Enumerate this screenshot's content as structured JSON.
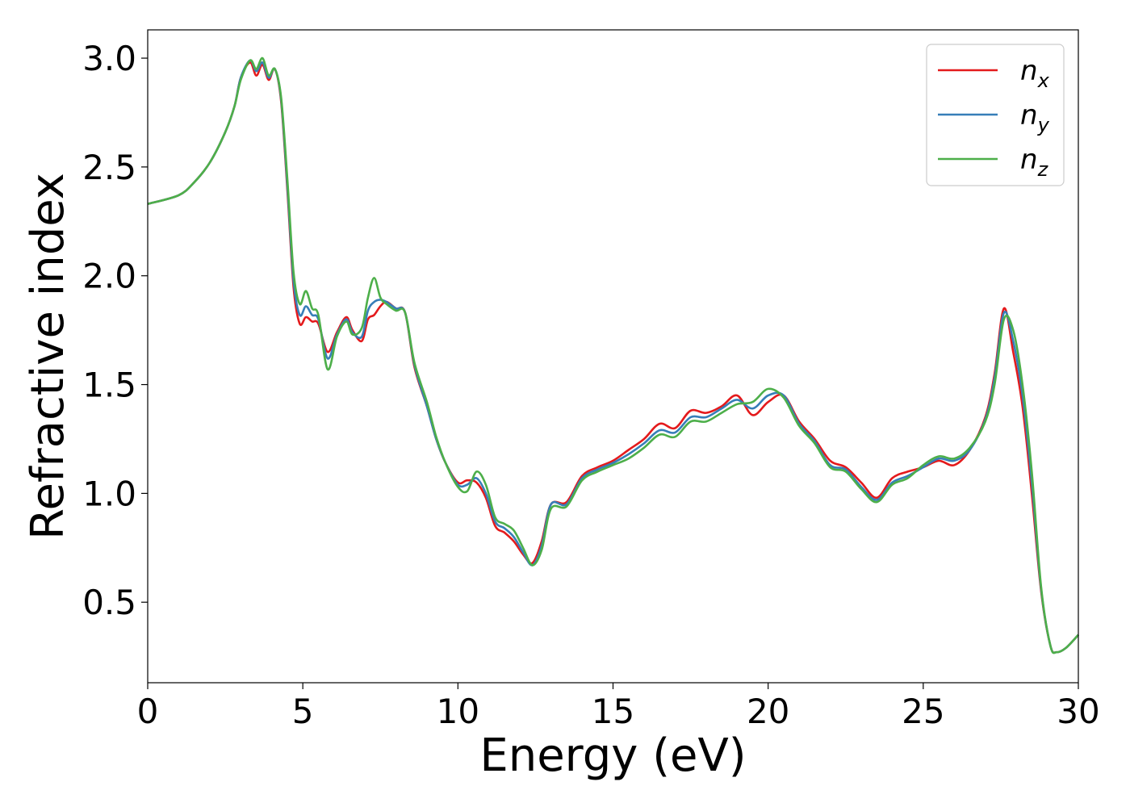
{
  "chart_data": {
    "type": "line",
    "title": "",
    "xlabel": "Energy (eV)",
    "ylabel": "Refractive index",
    "xlim": [
      0,
      30
    ],
    "ylim": [
      0.13,
      3.13
    ],
    "xticks": [
      0,
      5,
      10,
      15,
      20,
      25,
      30
    ],
    "xtick_labels": [
      "0",
      "5",
      "10",
      "15",
      "20",
      "25",
      "30"
    ],
    "yticks": [
      0.5,
      1.0,
      1.5,
      2.0,
      2.5,
      3.0
    ],
    "ytick_labels": [
      "0.5",
      "1.0",
      "1.5",
      "2.0",
      "2.5",
      "3.0"
    ],
    "grid": false,
    "legend_position": "top-right",
    "series": [
      {
        "name": "n_x",
        "label_base": "n",
        "label_sub": "x",
        "color": "#e41a1c",
        "x": [
          0,
          1,
          1.5,
          2,
          2.5,
          2.8,
          3.0,
          3.3,
          3.5,
          3.7,
          3.9,
          4.1,
          4.3,
          4.5,
          4.7,
          4.9,
          5.1,
          5.3,
          5.5,
          5.8,
          6.1,
          6.4,
          6.6,
          6.9,
          7.1,
          7.3,
          7.5,
          7.7,
          8.0,
          8.3,
          8.6,
          9.0,
          9.3,
          9.6,
          10.0,
          10.3,
          10.6,
          10.9,
          11.2,
          11.5,
          11.8,
          12.1,
          12.4,
          12.7,
          13.0,
          13.5,
          14.0,
          14.5,
          15.0,
          15.5,
          16.0,
          16.5,
          17.0,
          17.5,
          18.0,
          18.5,
          19.0,
          19.5,
          20.0,
          20.5,
          21.0,
          21.5,
          22.0,
          22.5,
          23.0,
          23.5,
          24.0,
          24.5,
          25.0,
          25.5,
          26.0,
          26.5,
          27.0,
          27.3,
          27.6,
          27.9,
          28.2,
          28.5,
          28.8,
          29.1,
          29.3,
          29.6,
          30.0
        ],
        "y": [
          2.33,
          2.37,
          2.43,
          2.52,
          2.66,
          2.78,
          2.91,
          2.98,
          2.92,
          2.97,
          2.9,
          2.95,
          2.8,
          2.4,
          1.95,
          1.78,
          1.81,
          1.79,
          1.78,
          1.65,
          1.74,
          1.81,
          1.75,
          1.7,
          1.8,
          1.82,
          1.86,
          1.88,
          1.85,
          1.83,
          1.58,
          1.4,
          1.25,
          1.14,
          1.05,
          1.06,
          1.05,
          0.98,
          0.85,
          0.82,
          0.78,
          0.72,
          0.68,
          0.78,
          0.95,
          0.96,
          1.08,
          1.12,
          1.15,
          1.2,
          1.25,
          1.32,
          1.3,
          1.38,
          1.37,
          1.4,
          1.45,
          1.36,
          1.42,
          1.45,
          1.33,
          1.25,
          1.15,
          1.12,
          1.05,
          0.98,
          1.07,
          1.1,
          1.12,
          1.15,
          1.13,
          1.2,
          1.35,
          1.55,
          1.85,
          1.65,
          1.4,
          1.0,
          0.55,
          0.3,
          0.27,
          0.29,
          0.35
        ]
      },
      {
        "name": "n_y",
        "label_base": "n",
        "label_sub": "y",
        "color": "#377eb8",
        "x": [
          0,
          1,
          1.5,
          2,
          2.5,
          2.8,
          3.0,
          3.3,
          3.5,
          3.7,
          3.9,
          4.1,
          4.3,
          4.5,
          4.7,
          4.9,
          5.1,
          5.3,
          5.5,
          5.8,
          6.1,
          6.4,
          6.6,
          6.9,
          7.1,
          7.3,
          7.5,
          7.7,
          8.0,
          8.3,
          8.6,
          9.0,
          9.3,
          9.6,
          10.0,
          10.3,
          10.6,
          10.9,
          11.2,
          11.5,
          11.8,
          12.1,
          12.4,
          12.7,
          13.0,
          13.5,
          14.0,
          14.5,
          15.0,
          15.5,
          16.0,
          16.5,
          17.0,
          17.5,
          18.0,
          18.5,
          19.0,
          19.5,
          20.0,
          20.5,
          21.0,
          21.5,
          22.0,
          22.5,
          23.0,
          23.5,
          24.0,
          24.5,
          25.0,
          25.5,
          26.0,
          26.5,
          27.0,
          27.3,
          27.6,
          27.9,
          28.2,
          28.5,
          28.8,
          29.1,
          29.3,
          29.6,
          30.0
        ],
        "y": [
          2.33,
          2.37,
          2.43,
          2.52,
          2.66,
          2.78,
          2.91,
          2.99,
          2.94,
          2.98,
          2.91,
          2.95,
          2.81,
          2.42,
          1.98,
          1.82,
          1.86,
          1.82,
          1.8,
          1.62,
          1.73,
          1.8,
          1.74,
          1.72,
          1.84,
          1.88,
          1.89,
          1.88,
          1.85,
          1.83,
          1.59,
          1.4,
          1.25,
          1.14,
          1.04,
          1.04,
          1.07,
          1.0,
          0.87,
          0.84,
          0.8,
          0.73,
          0.67,
          0.76,
          0.95,
          0.95,
          1.07,
          1.11,
          1.14,
          1.18,
          1.23,
          1.29,
          1.28,
          1.35,
          1.35,
          1.39,
          1.43,
          1.39,
          1.45,
          1.45,
          1.32,
          1.24,
          1.13,
          1.11,
          1.03,
          0.97,
          1.05,
          1.08,
          1.12,
          1.16,
          1.15,
          1.2,
          1.34,
          1.53,
          1.83,
          1.7,
          1.45,
          1.05,
          0.56,
          0.3,
          0.27,
          0.29,
          0.35
        ]
      },
      {
        "name": "n_z",
        "label_base": "n",
        "label_sub": "z",
        "color": "#4daf4a",
        "x": [
          0,
          1,
          1.5,
          2,
          2.5,
          2.8,
          3.0,
          3.3,
          3.5,
          3.7,
          3.9,
          4.1,
          4.3,
          4.5,
          4.7,
          4.9,
          5.1,
          5.3,
          5.5,
          5.8,
          6.1,
          6.4,
          6.6,
          6.9,
          7.1,
          7.3,
          7.5,
          7.7,
          8.0,
          8.3,
          8.6,
          9.0,
          9.3,
          9.6,
          10.0,
          10.3,
          10.6,
          10.9,
          11.2,
          11.5,
          11.8,
          12.1,
          12.4,
          12.7,
          13.0,
          13.5,
          14.0,
          14.5,
          15.0,
          15.5,
          16.0,
          16.5,
          17.0,
          17.5,
          18.0,
          18.5,
          19.0,
          19.5,
          20.0,
          20.5,
          21.0,
          21.5,
          22.0,
          22.5,
          23.0,
          23.5,
          24.0,
          24.5,
          25.0,
          25.5,
          26.0,
          26.5,
          27.0,
          27.3,
          27.6,
          27.9,
          28.2,
          28.5,
          28.8,
          29.1,
          29.3,
          29.6,
          30.0
        ],
        "y": [
          2.33,
          2.37,
          2.43,
          2.52,
          2.66,
          2.78,
          2.9,
          2.99,
          2.95,
          3.0,
          2.92,
          2.95,
          2.82,
          2.45,
          2.02,
          1.87,
          1.93,
          1.85,
          1.82,
          1.57,
          1.72,
          1.79,
          1.73,
          1.76,
          1.9,
          1.99,
          1.9,
          1.87,
          1.84,
          1.83,
          1.6,
          1.42,
          1.26,
          1.14,
          1.03,
          1.01,
          1.1,
          1.04,
          0.89,
          0.86,
          0.83,
          0.75,
          0.67,
          0.74,
          0.93,
          0.94,
          1.06,
          1.1,
          1.13,
          1.16,
          1.21,
          1.27,
          1.26,
          1.33,
          1.33,
          1.37,
          1.41,
          1.42,
          1.48,
          1.44,
          1.31,
          1.23,
          1.12,
          1.1,
          1.02,
          0.96,
          1.04,
          1.07,
          1.13,
          1.17,
          1.16,
          1.21,
          1.33,
          1.5,
          1.8,
          1.75,
          1.5,
          1.1,
          0.57,
          0.3,
          0.27,
          0.29,
          0.35
        ]
      }
    ]
  }
}
